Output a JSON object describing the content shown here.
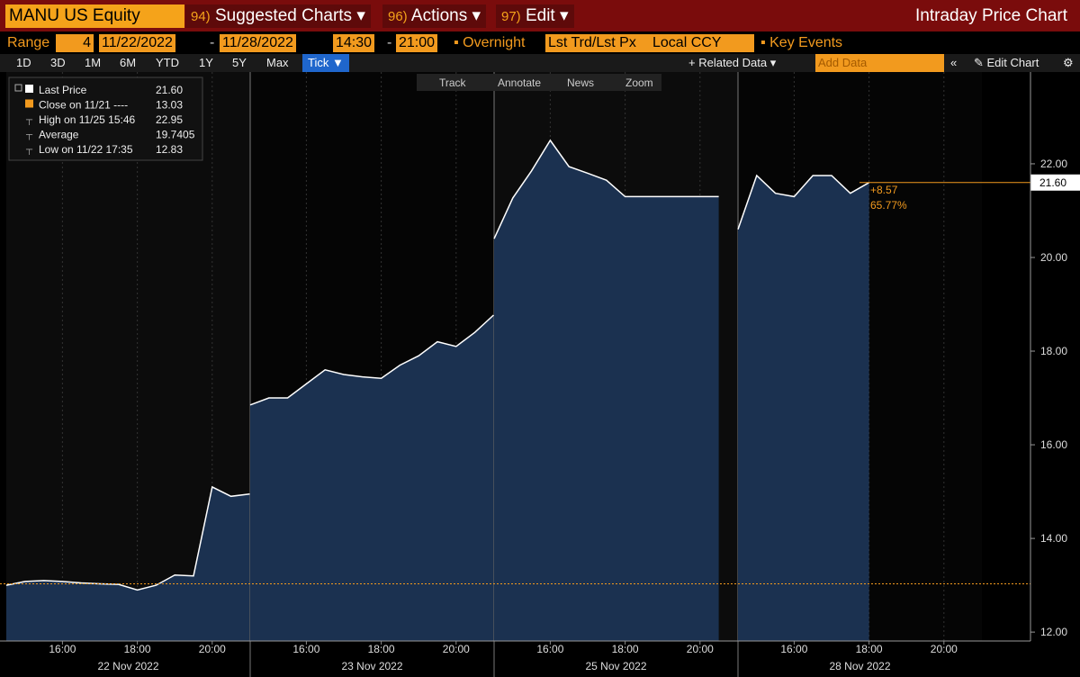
{
  "toolbar": {
    "ticker": "MANU US Equity",
    "menus": [
      {
        "code": "94)",
        "label": "Suggested Charts"
      },
      {
        "code": "96)",
        "label": "Actions"
      },
      {
        "code": "97)",
        "label": "Edit"
      }
    ],
    "title": "Intraday Price Chart"
  },
  "range_bar": {
    "range": "Range",
    "count": "4",
    "start_date": "11/22/2022",
    "dash": "-",
    "end_date": "11/28/2022",
    "start_time": "14:30",
    "end_time": "21:00",
    "overnight": "Overnight",
    "field": "Lst Trd/Lst Px",
    "currency": "Local CCY",
    "key_events": "Key Events"
  },
  "period_bar": {
    "periods": [
      "1D",
      "3D",
      "1M",
      "6M",
      "YTD",
      "1Y",
      "5Y",
      "Max"
    ],
    "tick": "Tick ▼",
    "related": "+ Related Data ▾",
    "add_data": "Add Data",
    "edit_chart": "Edit Chart"
  },
  "tools": [
    "Track",
    "Annotate",
    "News",
    "Zoom"
  ],
  "legend": [
    {
      "label": "Last Price",
      "value": "21.60"
    },
    {
      "label": "Close on 11/21 ----",
      "value": "13.03"
    },
    {
      "label": "High on 11/25 15:46",
      "value": "22.95"
    },
    {
      "label": "Average",
      "value": "19.7405"
    },
    {
      "label": "Low on 11/22 17:35",
      "value": "12.83"
    }
  ],
  "chart_data": {
    "type": "line",
    "x": [
      14.5,
      15,
      15.5,
      16,
      16.5,
      17,
      17.5,
      18,
      18.5,
      19,
      19.5,
      20,
      20.5,
      21
    ],
    "xticks": [
      {
        "value": 16,
        "label": "16:00"
      },
      {
        "value": 18,
        "label": "18:00"
      },
      {
        "value": 20,
        "label": "20:00"
      }
    ],
    "series": [
      {
        "name": "22 Nov 2022",
        "color": "#ffffff",
        "values": [
          13.0,
          13.08,
          13.1,
          13.08,
          13.05,
          13.03,
          13.02,
          12.9,
          13.0,
          13.22,
          13.2,
          15.1,
          14.9,
          14.95
        ]
      },
      {
        "name": "23 Nov 2022",
        "color": "#ffffff",
        "values": [
          16.85,
          17.0,
          17.0,
          17.3,
          17.6,
          17.5,
          17.45,
          17.42,
          17.7,
          17.9,
          18.2,
          18.1,
          18.4,
          18.77
        ]
      },
      {
        "name": "25 Nov 2022",
        "color": "#ffffff",
        "values": [
          20.4,
          21.27,
          21.85,
          22.5,
          21.94,
          21.8,
          21.65,
          21.3,
          21.3,
          21.3,
          21.3,
          21.3,
          21.3,
          null
        ]
      },
      {
        "name": "28 Nov 2022",
        "color": "#ffffff",
        "values": [
          20.6,
          21.75,
          21.37,
          21.3,
          21.75,
          21.75,
          21.37,
          21.6,
          null,
          null,
          null,
          null,
          null,
          null
        ]
      }
    ],
    "area_color": "#1b3150",
    "ylim": [
      11.81,
      23.96
    ],
    "yticks": [
      {
        "value": 12,
        "label": "12.00"
      },
      {
        "value": 14,
        "label": "14.00"
      },
      {
        "value": 16,
        "label": "16.00"
      },
      {
        "value": 18,
        "label": "18.00"
      },
      {
        "value": 20,
        "label": "20.00"
      },
      {
        "value": 22,
        "label": "22.00"
      }
    ],
    "last_price": {
      "value": 21.6,
      "label": "21.60"
    },
    "prev_close": {
      "value": 13.03,
      "label": "13.03"
    },
    "change": "+8.57",
    "change_pct": "65.77%"
  }
}
